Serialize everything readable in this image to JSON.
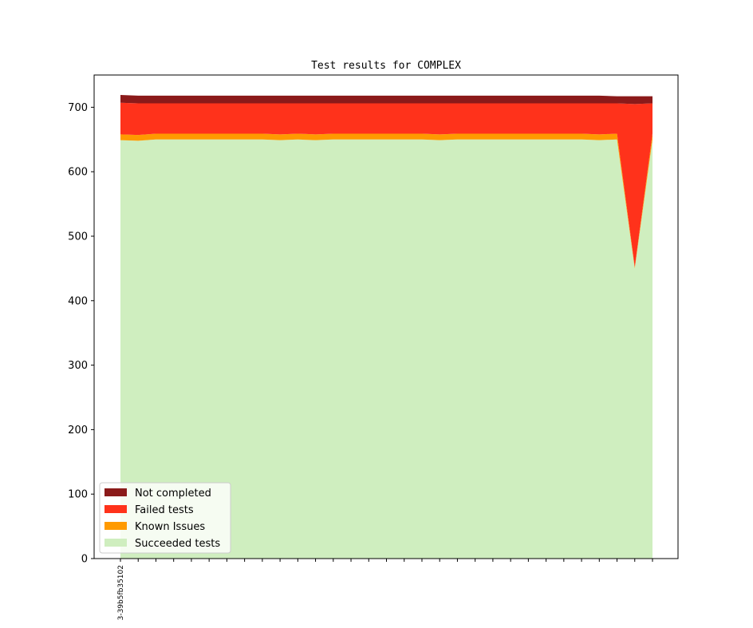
{
  "chart_data": {
    "type": "area",
    "stacked": true,
    "title": "Test results for COMPLEX",
    "xlabel": "",
    "ylabel": "",
    "ylim": [
      0,
      750
    ],
    "yticks": [
      0,
      100,
      200,
      300,
      400,
      500,
      600,
      700
    ],
    "x_tick_count": 31,
    "x_tick_labels": [
      {
        "index": 0,
        "label": "3-39b5fb35102"
      }
    ],
    "series": [
      {
        "name": "Succeeded tests",
        "color": "#cfeebf",
        "values": [
          649,
          648,
          650,
          650,
          650,
          650,
          650,
          650,
          650,
          649,
          650,
          649,
          650,
          650,
          650,
          650,
          650,
          650,
          649,
          650,
          650,
          650,
          650,
          650,
          650,
          650,
          650,
          649,
          650,
          450,
          650
        ]
      },
      {
        "name": "Known Issues",
        "color": "#ff9a00",
        "values": [
          9,
          9,
          9,
          9,
          9,
          9,
          9,
          9,
          9,
          9,
          9,
          9,
          9,
          9,
          9,
          9,
          9,
          9,
          9,
          9,
          9,
          9,
          9,
          9,
          9,
          9,
          9,
          9,
          9,
          2,
          9
        ]
      },
      {
        "name": "Failed tests",
        "color": "#ff321b",
        "values": [
          49,
          49,
          47,
          47,
          47,
          47,
          47,
          47,
          47,
          48,
          47,
          48,
          47,
          47,
          47,
          47,
          47,
          47,
          48,
          47,
          47,
          47,
          47,
          47,
          47,
          47,
          47,
          48,
          47,
          253,
          47
        ]
      },
      {
        "name": "Not completed",
        "color": "#8b1a1a",
        "values": [
          12,
          12,
          12,
          12,
          12,
          12,
          12,
          12,
          12,
          12,
          12,
          12,
          12,
          12,
          12,
          12,
          12,
          12,
          12,
          12,
          12,
          12,
          12,
          12,
          12,
          12,
          12,
          12,
          11,
          12,
          11
        ]
      }
    ],
    "legend": {
      "position": "lower-left",
      "order": [
        "Not completed",
        "Failed tests",
        "Known Issues",
        "Succeeded tests"
      ]
    },
    "grid": false
  }
}
